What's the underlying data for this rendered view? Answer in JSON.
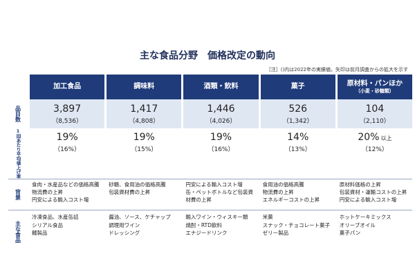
{
  "title": "主な食品分野　価格改定の動向",
  "note": "［注］()内は2022年の実績値。矢印は前月調査からの拡大を示す",
  "row_labels": {
    "items": "品目数",
    "rate": "1回あたり平均値上げ率",
    "background": "背景",
    "foods": "主な食品"
  },
  "chart_data": {
    "type": "table",
    "columns": [
      {
        "name": "加工食品",
        "sub": "",
        "items": "3,897",
        "items_prev": "（8,536）",
        "rate": "19%",
        "rate_suffix": "",
        "rate_prev": "（16%）",
        "background": [
          "食肉・水産品などの価格高騰",
          "物流費の上昇",
          "円安による輸入コスト増"
        ],
        "foods": [
          "冷凍食品、水産缶詰",
          "シリアル食品",
          "麺製品"
        ]
      },
      {
        "name": "調味料",
        "sub": "",
        "items": "1,417",
        "items_prev": "（4,808）",
        "rate": "19%",
        "rate_suffix": "",
        "rate_prev": "（15%）",
        "background": [
          "砂糖、食用油の価格高騰",
          "包装資材費の上昇"
        ],
        "foods": [
          "醤油、ソース、ケチャップ",
          "調理用ワイン",
          "ドレッシング"
        ]
      },
      {
        "name": "酒類・飲料",
        "sub": "",
        "items": "1,446",
        "items_prev": "（4,026）",
        "rate": "19%",
        "rate_suffix": "",
        "rate_prev": "（16%）",
        "background": [
          "円安による輸入コスト増",
          "缶・ペットボトルなど包装資材費の上昇"
        ],
        "foods": [
          "輸入ワイン・ウィスキー類",
          "焼酎・RTD飲料",
          "エナジードリンク"
        ]
      },
      {
        "name": "菓子",
        "sub": "",
        "items": "526",
        "items_prev": "（1,342）",
        "rate": "14%",
        "rate_suffix": "",
        "rate_prev": "（13%）",
        "background": [
          "食用油の価格高騰",
          "物流費の上昇",
          "エネルギーコストの上昇"
        ],
        "foods": [
          "米菓",
          "スナック・チョコレート菓子",
          "ゼリー製品"
        ]
      },
      {
        "name": "原材料・パンほか",
        "sub": "（小麦・砂糖類）",
        "items": "104",
        "items_prev": "（2,110）",
        "rate": "20%",
        "rate_suffix": "以上",
        "rate_prev": "（12%）",
        "background": [
          "原材料価格の上昇",
          "包装資材・運輸コストの上昇",
          "円安による輸入コスト増"
        ],
        "foods": [
          "ホットケーキミックス",
          "オリーブオイル",
          "菓子パン"
        ]
      }
    ]
  },
  "colors": {
    "header_bg": "#1f3b7a",
    "items_bg": "#dfe7f3"
  }
}
